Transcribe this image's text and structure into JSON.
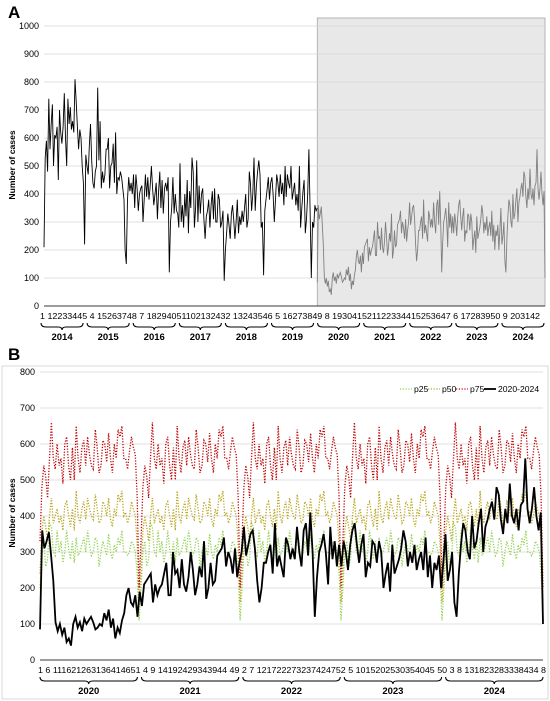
{
  "chart_data": [
    {
      "panel": "A",
      "type": "line",
      "ylabel": "Number of cases",
      "ylim": [
        0,
        1000
      ],
      "yticks": [
        0,
        100,
        200,
        300,
        400,
        500,
        600,
        700,
        800,
        900,
        1000
      ],
      "years": [
        "2014",
        "2015",
        "2016",
        "2017",
        "2018",
        "2019",
        "2020",
        "2021",
        "2022",
        "2023",
        "2024"
      ],
      "week_labels": "1 12233445 4 15263748 7 18294051102132432 13243546 5 16273849 8 193041521122334415253647 6 17283950 9 203142",
      "shaded_period": [
        "2020",
        "2024"
      ],
      "series": [
        {
          "period": "2014-2019",
          "color": "#000000",
          "values": [
            210,
            530,
            590,
            480,
            740,
            560,
            650,
            720,
            500,
            610,
            600,
            640,
            450,
            700,
            620,
            580,
            640,
            760,
            600,
            500,
            740,
            650,
            710,
            630,
            660,
            620,
            810,
            730,
            640,
            560,
            630,
            600,
            500,
            440,
            220,
            540,
            500,
            470,
            570,
            650,
            520,
            440,
            420,
            480,
            500,
            780,
            520,
            660,
            420,
            480,
            440,
            470,
            560,
            560,
            600,
            420,
            500,
            510,
            580,
            440,
            620,
            400,
            460,
            450,
            480,
            460,
            420,
            380,
            200,
            150,
            380,
            460,
            410,
            440,
            400,
            470,
            350,
            470,
            420,
            340,
            400,
            420,
            430,
            300,
            380,
            470,
            390,
            460,
            380,
            430,
            500,
            420,
            360,
            400,
            440,
            310,
            410,
            480,
            350,
            450,
            330,
            420,
            440,
            410,
            460,
            120,
            300,
            350,
            460,
            330,
            400,
            340,
            330,
            280,
            510,
            300,
            360,
            280,
            400,
            320,
            450,
            260,
            410,
            350,
            530,
            480,
            280,
            350,
            520,
            300,
            430,
            330,
            400,
            420,
            310,
            240,
            320,
            340,
            380,
            280,
            360,
            410,
            310,
            420,
            300,
            300,
            400,
            380,
            280,
            300,
            340,
            90,
            200,
            260,
            330,
            290,
            240,
            330,
            360,
            310,
            240,
            300,
            380,
            260,
            320,
            290,
            340,
            300,
            350,
            400,
            280,
            310,
            480,
            440,
            340,
            400,
            530,
            340,
            430,
            480,
            520,
            470,
            280,
            300,
            110,
            340,
            380,
            420,
            460,
            380,
            440,
            460,
            400,
            300,
            380,
            470,
            440,
            390,
            470,
            400,
            440,
            360,
            500,
            390,
            470,
            440,
            420,
            500,
            380,
            410,
            440,
            360,
            400,
            340,
            500,
            280,
            350,
            410,
            450,
            260,
            310,
            400,
            560,
            340,
            100,
            300,
            280,
            360,
            340,
            350
          ]
        },
        {
          "period": "2020-2024",
          "color": "#808080",
          "values": [
            85,
            360,
            310,
            330,
            355,
            290,
            220,
            105,
            80,
            100,
            70,
            90,
            50,
            60,
            40,
            100,
            120,
            90,
            105,
            80,
            115,
            100,
            110,
            120,
            105,
            85,
            90,
            100,
            95,
            130,
            110,
            140,
            90,
            115,
            60,
            90,
            75,
            110,
            130,
            180,
            200,
            160,
            150,
            180,
            120,
            190,
            150,
            210,
            220,
            230,
            240,
            160,
            210,
            180,
            200,
            210,
            240,
            270,
            180,
            180,
            300,
            240,
            250,
            200,
            280,
            210,
            190,
            230,
            300,
            250,
            180,
            210,
            260,
            230,
            330,
            170,
            200,
            270,
            210,
            220,
            290,
            300,
            310,
            340,
            260,
            300,
            280,
            240,
            310,
            230,
            270,
            300,
            370,
            290,
            320,
            350,
            360,
            310,
            220,
            160,
            200,
            270,
            270,
            300,
            320,
            240,
            380,
            260,
            290,
            260,
            230,
            340,
            320,
            280,
            310,
            280,
            370,
            300,
            260,
            360,
            380,
            290,
            410,
            300,
            120,
            230,
            300,
            320,
            350,
            300,
            210,
            370,
            280,
            330,
            260,
            320,
            260,
            330,
            300,
            250,
            320,
            360,
            380,
            320,
            270,
            320,
            350,
            230,
            270,
            260,
            330,
            320,
            270,
            330,
            300,
            200,
            240,
            270,
            190,
            320,
            240,
            260,
            280,
            310,
            360,
            330,
            260,
            300,
            270,
            320,
            250,
            280,
            300,
            250,
            340,
            230,
            290,
            200,
            270,
            250,
            290,
            200,
            270,
            350,
            220,
            250,
            300,
            160,
            120,
            240,
            320,
            380,
            360,
            300,
            280,
            400,
            310,
            330,
            380,
            420,
            300,
            370,
            390,
            420,
            440,
            390,
            480,
            460,
            390,
            350,
            420,
            380,
            490,
            400,
            380,
            420,
            360,
            430,
            440,
            560,
            420,
            380,
            420,
            480,
            400,
            360,
            410,
            100
          ]
        }
      ]
    },
    {
      "panel": "B",
      "type": "line",
      "ylabel": "Number of cases",
      "ylim": [
        0,
        800
      ],
      "yticks": [
        0,
        100,
        200,
        300,
        400,
        500,
        600,
        700,
        800
      ],
      "years": [
        "2020",
        "2021",
        "2022",
        "2023",
        "2024"
      ],
      "week_labels": "1  6 111621263136414651 4  9 14192429343944 49 2  7 121722273237424752 5 1015202530354045 50 3  8 131823283338434 8",
      "legend": [
        "p25",
        "p50",
        "p75",
        "2020-2024"
      ],
      "legend_position": "top-right",
      "series": [
        {
          "name": "p25",
          "color": "#92d050",
          "pattern": [
            200,
            300,
            330,
            260,
            280,
            380,
            370,
            300,
            290,
            360,
            300,
            330,
            270,
            300,
            360,
            310,
            280,
            330,
            270,
            340,
            290,
            300,
            320,
            340,
            300,
            360,
            320,
            290,
            300,
            340,
            330,
            260,
            300,
            330,
            310,
            290,
            350,
            300,
            280,
            320,
            300,
            340,
            320,
            360,
            300,
            300,
            290,
            300,
            330,
            320,
            300,
            240,
            110
          ]
        },
        {
          "name": "p50",
          "color": "#b8a41c",
          "pattern": [
            240,
            360,
            400,
            370,
            330,
            400,
            450,
            380,
            400,
            420,
            380,
            400,
            360,
            430,
            440,
            400,
            370,
            420,
            360,
            470,
            400,
            380,
            420,
            440,
            390,
            450,
            420,
            400,
            390,
            460,
            420,
            380,
            390,
            440,
            430,
            400,
            450,
            390,
            370,
            420,
            400,
            460,
            440,
            470,
            400,
            410,
            380,
            400,
            440,
            420,
            400,
            320,
            160
          ]
        },
        {
          "name": "p75",
          "color": "#c00000",
          "pattern": [
            330,
            480,
            540,
            510,
            450,
            560,
            660,
            560,
            530,
            600,
            540,
            560,
            490,
            600,
            620,
            540,
            500,
            590,
            500,
            650,
            560,
            520,
            590,
            610,
            540,
            620,
            570,
            540,
            530,
            640,
            590,
            520,
            540,
            610,
            600,
            550,
            630,
            560,
            520,
            600,
            560,
            640,
            620,
            650,
            560,
            560,
            530,
            580,
            620,
            590,
            570,
            450,
            200
          ]
        },
        {
          "name": "2020-2024",
          "color": "#000000",
          "values": [
            85,
            360,
            310,
            330,
            355,
            290,
            220,
            105,
            80,
            100,
            70,
            90,
            50,
            60,
            40,
            100,
            120,
            90,
            105,
            80,
            115,
            100,
            110,
            120,
            105,
            85,
            90,
            100,
            95,
            130,
            110,
            140,
            90,
            115,
            60,
            90,
            75,
            110,
            130,
            180,
            200,
            160,
            150,
            180,
            120,
            190,
            150,
            210,
            220,
            230,
            240,
            160,
            210,
            180,
            200,
            210,
            240,
            270,
            180,
            180,
            300,
            240,
            250,
            200,
            280,
            210,
            190,
            230,
            300,
            250,
            180,
            210,
            260,
            230,
            330,
            170,
            200,
            270,
            210,
            220,
            290,
            300,
            310,
            340,
            260,
            300,
            280,
            240,
            310,
            230,
            270,
            300,
            370,
            290,
            320,
            350,
            360,
            310,
            220,
            160,
            200,
            270,
            270,
            300,
            320,
            240,
            380,
            260,
            290,
            260,
            230,
            340,
            320,
            280,
            310,
            280,
            370,
            300,
            260,
            360,
            380,
            290,
            410,
            300,
            120,
            230,
            300,
            320,
            350,
            300,
            210,
            370,
            280,
            330,
            260,
            320,
            260,
            330,
            300,
            250,
            320,
            360,
            380,
            320,
            270,
            320,
            350,
            230,
            270,
            260,
            330,
            320,
            270,
            330,
            300,
            200,
            240,
            270,
            190,
            320,
            240,
            260,
            280,
            310,
            360,
            330,
            260,
            300,
            270,
            320,
            250,
            280,
            300,
            250,
            340,
            230,
            290,
            200,
            270,
            250,
            290,
            200,
            270,
            350,
            220,
            250,
            300,
            160,
            120,
            240,
            320,
            380,
            360,
            300,
            280,
            400,
            310,
            330,
            380,
            420,
            300,
            370,
            390,
            420,
            440,
            390,
            480,
            460,
            390,
            350,
            420,
            380,
            490,
            400,
            380,
            420,
            360,
            430,
            440,
            560,
            420,
            380,
            420,
            480,
            400,
            360,
            410,
            100
          ]
        }
      ]
    }
  ]
}
